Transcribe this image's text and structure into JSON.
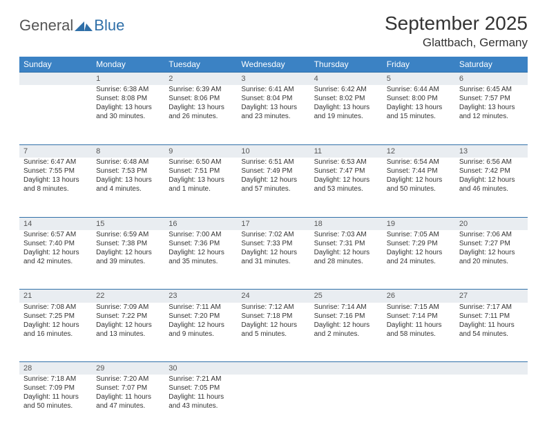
{
  "logo": {
    "general": "General",
    "blue": "Blue"
  },
  "title": "September 2025",
  "location": "Glattbach, Germany",
  "colors": {
    "header_bg": "#3b82c4",
    "header_text": "#ffffff",
    "daynum_bg": "#e9edf1",
    "daynum_border": "#2f6fa8",
    "body_text": "#333333",
    "logo_blue": "#2f6fa8"
  },
  "font": {
    "family": "Arial",
    "title_size": 28,
    "location_size": 17,
    "header_size": 12,
    "cell_size": 10
  },
  "dayHeaders": [
    "Sunday",
    "Monday",
    "Tuesday",
    "Wednesday",
    "Thursday",
    "Friday",
    "Saturday"
  ],
  "weeks": [
    {
      "nums": [
        "",
        "1",
        "2",
        "3",
        "4",
        "5",
        "6"
      ],
      "cells": [
        {
          "lines": []
        },
        {
          "lines": [
            "Sunrise: 6:38 AM",
            "Sunset: 8:08 PM",
            "Daylight: 13 hours and 30 minutes."
          ]
        },
        {
          "lines": [
            "Sunrise: 6:39 AM",
            "Sunset: 8:06 PM",
            "Daylight: 13 hours and 26 minutes."
          ]
        },
        {
          "lines": [
            "Sunrise: 6:41 AM",
            "Sunset: 8:04 PM",
            "Daylight: 13 hours and 23 minutes."
          ]
        },
        {
          "lines": [
            "Sunrise: 6:42 AM",
            "Sunset: 8:02 PM",
            "Daylight: 13 hours and 19 minutes."
          ]
        },
        {
          "lines": [
            "Sunrise: 6:44 AM",
            "Sunset: 8:00 PM",
            "Daylight: 13 hours and 15 minutes."
          ]
        },
        {
          "lines": [
            "Sunrise: 6:45 AM",
            "Sunset: 7:57 PM",
            "Daylight: 13 hours and 12 minutes."
          ]
        }
      ]
    },
    {
      "nums": [
        "7",
        "8",
        "9",
        "10",
        "11",
        "12",
        "13"
      ],
      "cells": [
        {
          "lines": [
            "Sunrise: 6:47 AM",
            "Sunset: 7:55 PM",
            "Daylight: 13 hours and 8 minutes."
          ]
        },
        {
          "lines": [
            "Sunrise: 6:48 AM",
            "Sunset: 7:53 PM",
            "Daylight: 13 hours and 4 minutes."
          ]
        },
        {
          "lines": [
            "Sunrise: 6:50 AM",
            "Sunset: 7:51 PM",
            "Daylight: 13 hours and 1 minute."
          ]
        },
        {
          "lines": [
            "Sunrise: 6:51 AM",
            "Sunset: 7:49 PM",
            "Daylight: 12 hours and 57 minutes."
          ]
        },
        {
          "lines": [
            "Sunrise: 6:53 AM",
            "Sunset: 7:47 PM",
            "Daylight: 12 hours and 53 minutes."
          ]
        },
        {
          "lines": [
            "Sunrise: 6:54 AM",
            "Sunset: 7:44 PM",
            "Daylight: 12 hours and 50 minutes."
          ]
        },
        {
          "lines": [
            "Sunrise: 6:56 AM",
            "Sunset: 7:42 PM",
            "Daylight: 12 hours and 46 minutes."
          ]
        }
      ]
    },
    {
      "nums": [
        "14",
        "15",
        "16",
        "17",
        "18",
        "19",
        "20"
      ],
      "cells": [
        {
          "lines": [
            "Sunrise: 6:57 AM",
            "Sunset: 7:40 PM",
            "Daylight: 12 hours and 42 minutes."
          ]
        },
        {
          "lines": [
            "Sunrise: 6:59 AM",
            "Sunset: 7:38 PM",
            "Daylight: 12 hours and 39 minutes."
          ]
        },
        {
          "lines": [
            "Sunrise: 7:00 AM",
            "Sunset: 7:36 PM",
            "Daylight: 12 hours and 35 minutes."
          ]
        },
        {
          "lines": [
            "Sunrise: 7:02 AM",
            "Sunset: 7:33 PM",
            "Daylight: 12 hours and 31 minutes."
          ]
        },
        {
          "lines": [
            "Sunrise: 7:03 AM",
            "Sunset: 7:31 PM",
            "Daylight: 12 hours and 28 minutes."
          ]
        },
        {
          "lines": [
            "Sunrise: 7:05 AM",
            "Sunset: 7:29 PM",
            "Daylight: 12 hours and 24 minutes."
          ]
        },
        {
          "lines": [
            "Sunrise: 7:06 AM",
            "Sunset: 7:27 PM",
            "Daylight: 12 hours and 20 minutes."
          ]
        }
      ]
    },
    {
      "nums": [
        "21",
        "22",
        "23",
        "24",
        "25",
        "26",
        "27"
      ],
      "cells": [
        {
          "lines": [
            "Sunrise: 7:08 AM",
            "Sunset: 7:25 PM",
            "Daylight: 12 hours and 16 minutes."
          ]
        },
        {
          "lines": [
            "Sunrise: 7:09 AM",
            "Sunset: 7:22 PM",
            "Daylight: 12 hours and 13 minutes."
          ]
        },
        {
          "lines": [
            "Sunrise: 7:11 AM",
            "Sunset: 7:20 PM",
            "Daylight: 12 hours and 9 minutes."
          ]
        },
        {
          "lines": [
            "Sunrise: 7:12 AM",
            "Sunset: 7:18 PM",
            "Daylight: 12 hours and 5 minutes."
          ]
        },
        {
          "lines": [
            "Sunrise: 7:14 AM",
            "Sunset: 7:16 PM",
            "Daylight: 12 hours and 2 minutes."
          ]
        },
        {
          "lines": [
            "Sunrise: 7:15 AM",
            "Sunset: 7:14 PM",
            "Daylight: 11 hours and 58 minutes."
          ]
        },
        {
          "lines": [
            "Sunrise: 7:17 AM",
            "Sunset: 7:11 PM",
            "Daylight: 11 hours and 54 minutes."
          ]
        }
      ]
    },
    {
      "nums": [
        "28",
        "29",
        "30",
        "",
        "",
        "",
        ""
      ],
      "cells": [
        {
          "lines": [
            "Sunrise: 7:18 AM",
            "Sunset: 7:09 PM",
            "Daylight: 11 hours and 50 minutes."
          ]
        },
        {
          "lines": [
            "Sunrise: 7:20 AM",
            "Sunset: 7:07 PM",
            "Daylight: 11 hours and 47 minutes."
          ]
        },
        {
          "lines": [
            "Sunrise: 7:21 AM",
            "Sunset: 7:05 PM",
            "Daylight: 11 hours and 43 minutes."
          ]
        },
        {
          "lines": []
        },
        {
          "lines": []
        },
        {
          "lines": []
        },
        {
          "lines": []
        }
      ]
    }
  ]
}
